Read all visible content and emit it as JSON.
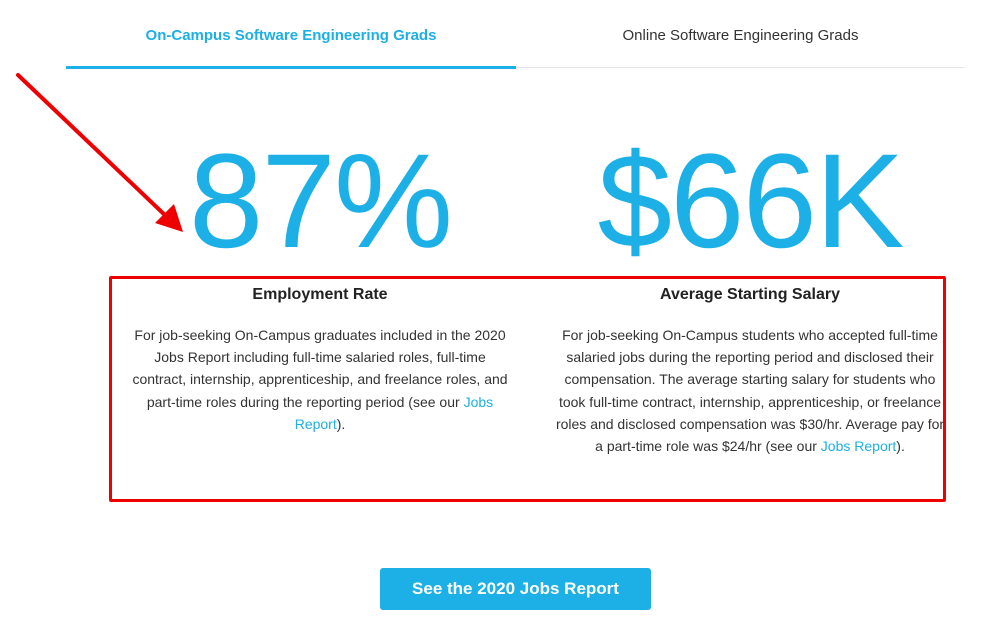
{
  "tabs": [
    {
      "label": "On-Campus Software Engineering Grads",
      "active": true
    },
    {
      "label": "Online Software Engineering Grads",
      "active": false
    }
  ],
  "stats": {
    "employment": {
      "value": "87%",
      "title": "Employment Rate",
      "description": "For job-seeking On-Campus graduates included in the 2020 Jobs Report including full-time salaried roles, full-time contract, internship, apprenticeship, and freelance roles, and part-time roles during the reporting period (see our ",
      "link_text": "Jobs Report",
      "suffix": ")."
    },
    "salary": {
      "value": "$66K",
      "title": "Average Starting Salary",
      "description": "For job-seeking On-Campus students who accepted full-time salaried jobs during the reporting period and disclosed their compensation. The average starting salary for students who took full-time contract, internship, apprenticeship, or freelance roles and disclosed compensation was $30/hr. Average pay for a part-time role was $24/hr (see our ",
      "link_text": "Jobs Report",
      "suffix": ")."
    }
  },
  "cta": {
    "label": "See the 2020 Jobs Report"
  },
  "colors": {
    "accent": "#1cb0e6",
    "annotation": "#ee0000",
    "text": "#333333"
  }
}
